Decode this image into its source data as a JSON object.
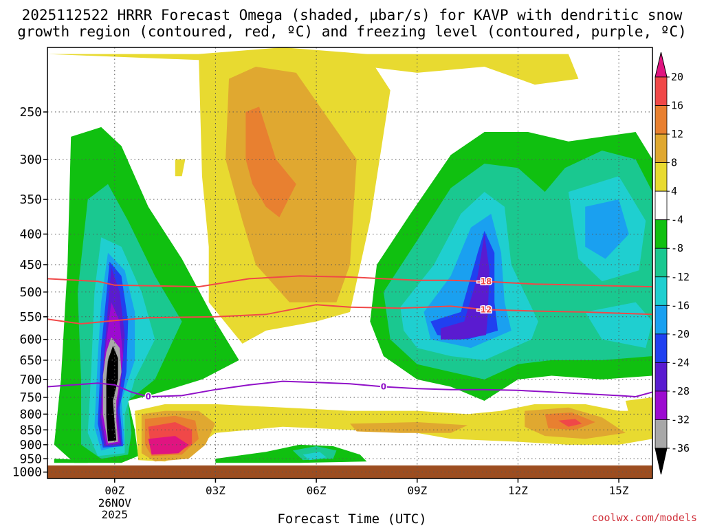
{
  "title_line1": "2025112522 HRRR Forecast Omega (shaded, µbar/s) for KAVP with dendritic snow",
  "title_line2": "growth region (contoured, red, ºC) and freezing level (contoured, purple, ºC)",
  "credit": "coolwx.com/models",
  "chart_data": {
    "type": "heatmap",
    "xlabel": "Forecast Time (UTC)",
    "ylabel": "",
    "x_range_hours": [
      -2,
      16
    ],
    "x_ticks": [
      {
        "hour": 0,
        "label": "00Z",
        "sub1": "26NOV",
        "sub2": "2025"
      },
      {
        "hour": 3,
        "label": "03Z"
      },
      {
        "hour": 6,
        "label": "06Z"
      },
      {
        "hour": 9,
        "label": "09Z"
      },
      {
        "hour": 12,
        "label": "12Z"
      },
      {
        "hour": 15,
        "label": "15Z"
      }
    ],
    "y_scale": "log-pressure",
    "y_range_hpa": [
      195,
      1025
    ],
    "y_ticks": [
      250,
      300,
      350,
      400,
      450,
      500,
      550,
      600,
      650,
      700,
      750,
      800,
      850,
      900,
      950,
      1000
    ],
    "surface_pressure_hpa": 975,
    "colorbar": {
      "levels": [
        -36,
        -32,
        -28,
        -24,
        -20,
        -16,
        -12,
        -8,
        -4,
        4,
        8,
        12,
        16,
        20
      ],
      "colors": [
        "#000000",
        "#a8a8a8",
        "#9c0bd0",
        "#5a1bd0",
        "#2040f0",
        "#1aa0f0",
        "#1fcfd0",
        "#1ac890",
        "#10c010",
        "#ffffff",
        "#e8da30",
        "#e0a830",
        "#e88030",
        "#f04848",
        "#e01480"
      ]
    },
    "contours": [
      {
        "label": "-18",
        "color": "#f04848",
        "points": [
          [
            -2,
            475
          ],
          [
            -0.5,
            480
          ],
          [
            0,
            487
          ],
          [
            1,
            488
          ],
          [
            2.5,
            490
          ],
          [
            4,
            475
          ],
          [
            5.5,
            470
          ],
          [
            7,
            472
          ],
          [
            9,
            478
          ],
          [
            10,
            478
          ],
          [
            11,
            480
          ],
          [
            12.5,
            485
          ],
          [
            14,
            487
          ],
          [
            16,
            490
          ]
        ]
      },
      {
        "label": "-12",
        "color": "#f04848",
        "points": [
          [
            -2,
            555
          ],
          [
            -1,
            565
          ],
          [
            0,
            558
          ],
          [
            1,
            552
          ],
          [
            3,
            550
          ],
          [
            4.5,
            545
          ],
          [
            6,
            525
          ],
          [
            7,
            530
          ],
          [
            8.5,
            532
          ],
          [
            10,
            528
          ],
          [
            11,
            535
          ],
          [
            12.5,
            538
          ],
          [
            14,
            540
          ],
          [
            16,
            545
          ]
        ]
      },
      {
        "label": "0",
        "color": "#9010c8",
        "points": [
          [
            -2,
            720
          ],
          [
            -0.5,
            710
          ],
          [
            0,
            715
          ],
          [
            0.5,
            735
          ],
          [
            1,
            748
          ],
          [
            2,
            745
          ],
          [
            3,
            728
          ],
          [
            4,
            715
          ],
          [
            5,
            705
          ],
          [
            6,
            708
          ],
          [
            7,
            712
          ],
          [
            8,
            720
          ],
          [
            9,
            725
          ],
          [
            10,
            728
          ],
          [
            11,
            728
          ],
          [
            12,
            730
          ],
          [
            13,
            735
          ],
          [
            14,
            740
          ],
          [
            15,
            745
          ],
          [
            15.5,
            748
          ],
          [
            16,
            735
          ]
        ]
      }
    ],
    "note": "Shaded omega field is approximated with filled regions per colorbar level."
  }
}
